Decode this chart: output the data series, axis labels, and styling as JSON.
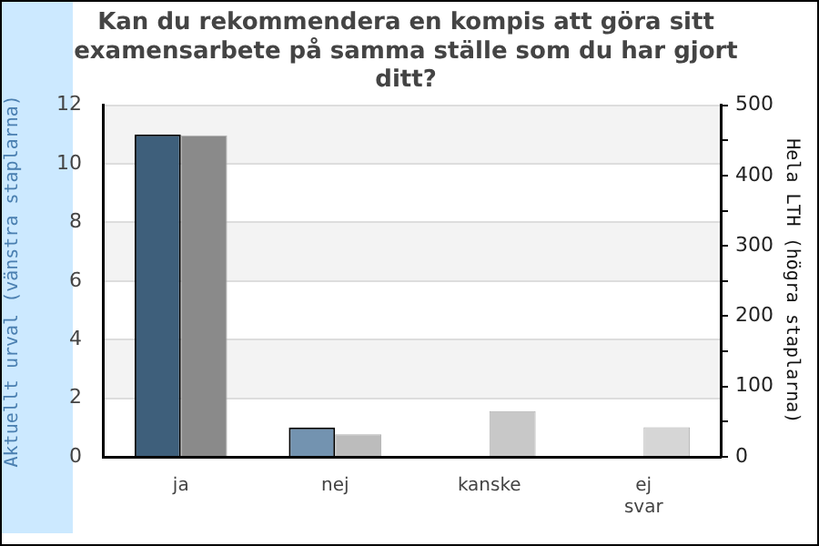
{
  "chart_data": {
    "type": "bar",
    "title": "Kan du rekommendera en kompis att göra sitt examensarbete på samma ställe som du har gjort ditt?",
    "categories": [
      "ja",
      "nej",
      "kanske",
      "ej svar"
    ],
    "ylabel": "Aktuellt urval (vänstra staplarna)",
    "y2label": "Hela LTH (högra staplarna)",
    "ylim": [
      0,
      12
    ],
    "yticks": [
      0,
      2,
      4,
      6,
      8,
      10,
      12
    ],
    "y2lim": [
      0,
      500
    ],
    "y2ticks": [
      0,
      {
        "value": 50,
        "label": null
      },
      100,
      {
        "value": 150,
        "label": null
      },
      200,
      {
        "value": 250,
        "label": null
      },
      300,
      {
        "value": 350,
        "label": null
      },
      400,
      {
        "value": 450,
        "label": null
      },
      500
    ],
    "grid": "y",
    "legend": false,
    "series": [
      {
        "values": [
          11,
          1,
          0,
          0
        ],
        "colors": [
          "#3e5f7b",
          "#7393b0",
          "#7393b0",
          "#7393b0"
        ]
      },
      {
        "values": [
          457,
          32,
          65,
          42
        ],
        "colors": [
          "#8a8a8a",
          "#bcbcbc",
          "#c8c8c8",
          "#d6d6d6"
        ],
        "axis": "y2"
      }
    ]
  }
}
